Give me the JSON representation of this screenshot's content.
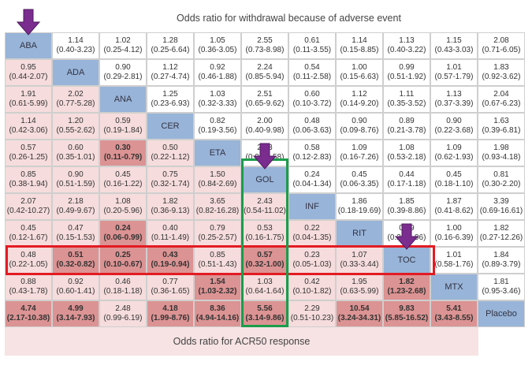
{
  "top_title": "Odds ratio for withdrawal because of adverse event",
  "bottom_title": "Odds ratio for ACR50 response",
  "treatments": [
    "ABA",
    "ADA",
    "ANA",
    "CER",
    "ETA",
    "GOL",
    "INF",
    "RIT",
    "TOC",
    "MTX",
    "Placebo"
  ],
  "colors": {
    "diagonal": "#98b4d8",
    "upper": "#ffffff",
    "lower_light": "#f6dcdc",
    "lower_dark": "#dc9393",
    "band": "#f7e3e3",
    "highlight_red": "#e31b23",
    "highlight_green": "#1a9d4a",
    "arrow": "#7a2d8f"
  },
  "rows": [
    [
      null,
      {
        "v": "1.14",
        "ci": "(0.40-3.23)"
      },
      {
        "v": "1.02",
        "ci": "(0.25-4.12)"
      },
      {
        "v": "1.28",
        "ci": "(0.25-6.64)"
      },
      {
        "v": "1.05",
        "ci": "(0.36-3.05)"
      },
      {
        "v": "2.55",
        "ci": "(0.73-8.98)"
      },
      {
        "v": "0.61",
        "ci": "(0.11-3.55)"
      },
      {
        "v": "1.14",
        "ci": "(0.15-8.85)"
      },
      {
        "v": "1.13",
        "ci": "(0.40-3.22)"
      },
      {
        "v": "1.15",
        "ci": "(0.43-3.03)"
      },
      {
        "v": "2.08",
        "ci": "(0.71-6.05)"
      }
    ],
    [
      {
        "v": "0.95",
        "ci": "(0.44-2.07)"
      },
      null,
      {
        "v": "0.90",
        "ci": "(0.29-2.81)"
      },
      {
        "v": "1.12",
        "ci": "(0.27-4.74)"
      },
      {
        "v": "0.92",
        "ci": "(0.46-1.88)"
      },
      {
        "v": "2.24",
        "ci": "(0.85-5.94)"
      },
      {
        "v": "0.54",
        "ci": "(0.11-2.58)"
      },
      {
        "v": "1.00",
        "ci": "(0.15-6.63)"
      },
      {
        "v": "0.99",
        "ci": "(0.51-1.92)"
      },
      {
        "v": "1.01",
        "ci": "(0.57-1.79)"
      },
      {
        "v": "1.83",
        "ci": "(0.92-3.62)"
      }
    ],
    [
      {
        "v": "1.91",
        "ci": "(0.61-5.99)"
      },
      {
        "v": "2.02",
        "ci": "(0.77-5.28)"
      },
      null,
      {
        "v": "1.25",
        "ci": "(0.23-6.93)"
      },
      {
        "v": "1.03",
        "ci": "(0.32-3.33)"
      },
      {
        "v": "2.51",
        "ci": "(0.65-9.62)"
      },
      {
        "v": "0.60",
        "ci": "(0.10-3.72)"
      },
      {
        "v": "1.12",
        "ci": "(0.14-9.20)"
      },
      {
        "v": "1.11",
        "ci": "(0.35-3.52)"
      },
      {
        "v": "1.13",
        "ci": "(0.37-3.39)"
      },
      {
        "v": "2.04",
        "ci": "(0.67-6.23)"
      }
    ],
    [
      {
        "v": "1.14",
        "ci": "(0.42-3.06)"
      },
      {
        "v": "1.20",
        "ci": "(0.55-2.62)"
      },
      {
        "v": "0.59",
        "ci": "(0.19-1.84)"
      },
      null,
      {
        "v": "0.82",
        "ci": "(0.19-3.56)"
      },
      {
        "v": "2.00",
        "ci": "(0.40-9.98)"
      },
      {
        "v": "0.48",
        "ci": "(0.06-3.63)"
      },
      {
        "v": "0.90",
        "ci": "(0.09-8.76)"
      },
      {
        "v": "0.89",
        "ci": "(0.21-3.78)"
      },
      {
        "v": "0.90",
        "ci": "(0.22-3.68)"
      },
      {
        "v": "1.63",
        "ci": "(0.39-6.81)"
      }
    ],
    [
      {
        "v": "0.57",
        "ci": "(0.26-1.25)"
      },
      {
        "v": "0.60",
        "ci": "(0.35-1.01)"
      },
      {
        "v": "0.30",
        "ci": "(0.11-0.79)",
        "b": true
      },
      {
        "v": "0.50",
        "ci": "(0.22-1.12)"
      },
      null,
      {
        "v": "2.43",
        "ci": "(0.90-6.58)"
      },
      {
        "v": "0.58",
        "ci": "(0.12-2.83)"
      },
      {
        "v": "1.09",
        "ci": "(0.16-7.26)"
      },
      {
        "v": "1.08",
        "ci": "(0.53-2.18)"
      },
      {
        "v": "1.09",
        "ci": "(0.62-1.93)"
      },
      {
        "v": "1.98",
        "ci": "(0.93-4.18)"
      }
    ],
    [
      {
        "v": "0.85",
        "ci": "(0.38-1.94)"
      },
      {
        "v": "0.90",
        "ci": "(0.51-1.59)"
      },
      {
        "v": "0.45",
        "ci": "(0.16-1.22)"
      },
      {
        "v": "0.75",
        "ci": "(0.32-1.74)"
      },
      {
        "v": "1.50",
        "ci": "(0.84-2.69)"
      },
      null,
      {
        "v": "0.24",
        "ci": "(0.04-1.34)"
      },
      {
        "v": "0.45",
        "ci": "(0.06-3.35)"
      },
      {
        "v": "0.44",
        "ci": "(0.17-1.18)"
      },
      {
        "v": "0.45",
        "ci": "(0.18-1.10)"
      },
      {
        "v": "0.81",
        "ci": "(0.30-2.20)"
      }
    ],
    [
      {
        "v": "2.07",
        "ci": "(0.42-10.27)"
      },
      {
        "v": "2.18",
        "ci": "(0.49-9.67)"
      },
      {
        "v": "1.08",
        "ci": "(0.20-5.96)"
      },
      {
        "v": "1.82",
        "ci": "(0.36-9.13)"
      },
      {
        "v": "3.65",
        "ci": "(0.82-16.28)"
      },
      {
        "v": "2.43",
        "ci": "(0.54-11.02)"
      },
      null,
      {
        "v": "1.86",
        "ci": "(0.18-19.69)"
      },
      {
        "v": "1.85",
        "ci": "(0.39-8.86)"
      },
      {
        "v": "1.87",
        "ci": "(0.41-8.62)"
      },
      {
        "v": "3.39",
        "ci": "(0.69-16.61)"
      }
    ],
    [
      {
        "v": "0.45",
        "ci": "(0.12-1.67)"
      },
      {
        "v": "0.47",
        "ci": "(0.15-1.53)"
      },
      {
        "v": "0.24",
        "ci": "(0.06-0.99)",
        "b": true
      },
      {
        "v": "0.40",
        "ci": "(0.11-1.49)"
      },
      {
        "v": "0.79",
        "ci": "(0.25-2.57)"
      },
      {
        "v": "0.53",
        "ci": "(0.16-1.75)"
      },
      {
        "v": "0.22",
        "ci": "(0.04-1.35)"
      },
      null,
      {
        "v": "0.99",
        "ci": "(0.25-3.96)"
      },
      {
        "v": "1.00",
        "ci": "(0.16-6.39)"
      },
      {
        "v": "1.82",
        "ci": "(0.27-12.26)"
      }
    ],
    [
      {
        "v": "0.48",
        "ci": "(0.22-1.05)"
      },
      {
        "v": "0.51",
        "ci": "(0.32-0.82)",
        "b": true
      },
      {
        "v": "0.25",
        "ci": "(0.10-0.67)",
        "b": true
      },
      {
        "v": "0.43",
        "ci": "(0.19-0.94)",
        "b": true
      },
      {
        "v": "0.85",
        "ci": "(0.51-1.43)"
      },
      {
        "v": "0.57",
        "ci": "(0.32-1.00)",
        "b": true
      },
      {
        "v": "0.23",
        "ci": "(0.05-1.03)"
      },
      {
        "v": "1.07",
        "ci": "(0.33-3.44)"
      },
      null,
      {
        "v": "1.01",
        "ci": "(0.58-1.76)"
      },
      {
        "v": "1.84",
        "ci": "(0.89-3.79)"
      }
    ],
    [
      {
        "v": "0.88",
        "ci": "(0.43-1.78)"
      },
      {
        "v": "0.92",
        "ci": "(0.60-1.41)"
      },
      {
        "v": "0.46",
        "ci": "(0.18-1.18)"
      },
      {
        "v": "0.77",
        "ci": "(0.36-1.65)"
      },
      {
        "v": "1.54",
        "ci": "(1.03-2.32)",
        "b": true
      },
      {
        "v": "1.03",
        "ci": "(0.64-1.64)"
      },
      {
        "v": "0.42",
        "ci": "(0.10-1.82)"
      },
      {
        "v": "1.95",
        "ci": "(0.63-5.99)"
      },
      {
        "v": "1.82",
        "ci": "(1.23-2.68)",
        "b": true
      },
      null,
      {
        "v": "1.81",
        "ci": "(0.95-3.46)"
      }
    ],
    [
      {
        "v": "4.74",
        "ci": "(2.17-10.38)",
        "b": true
      },
      {
        "v": "4.99",
        "ci": "(3.14-7.93)",
        "b": true
      },
      {
        "v": "2.48",
        "ci": "(0.99-6.19)"
      },
      {
        "v": "4.18",
        "ci": "(1.99-8.76)",
        "b": true
      },
      {
        "v": "8.36",
        "ci": "(4.94-14.16)",
        "b": true
      },
      {
        "v": "5.56",
        "ci": "(3.14-9.86)",
        "b": true
      },
      {
        "v": "2.29",
        "ci": "(0.51-10.23)"
      },
      {
        "v": "10.54",
        "ci": "(3.24-34.31)",
        "b": true
      },
      {
        "v": "9.83",
        "ci": "(5.85-16.52)",
        "b": true
      },
      {
        "v": "5.41",
        "ci": "(3.43-8.55)",
        "b": true
      },
      null
    ]
  ]
}
